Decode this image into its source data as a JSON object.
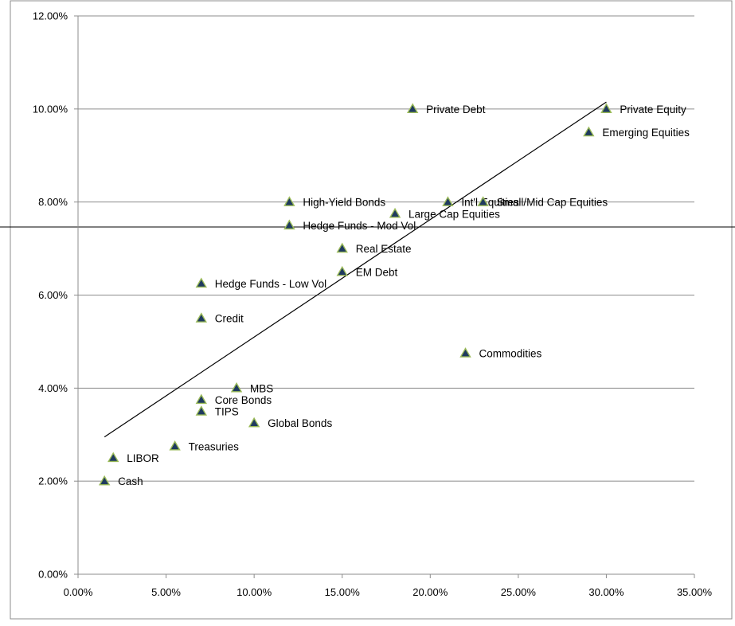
{
  "chart_data": {
    "type": "scatter",
    "title": "",
    "xlabel": "",
    "ylabel": "",
    "xlim": [
      0,
      35
    ],
    "ylim": [
      0,
      12
    ],
    "x_ticks": [
      0,
      5,
      10,
      15,
      20,
      25,
      30,
      35
    ],
    "y_ticks": [
      0,
      2,
      4,
      6,
      8,
      10,
      12
    ],
    "x_tick_labels": [
      "0.00%",
      "5.00%",
      "10.00%",
      "15.00%",
      "20.00%",
      "25.00%",
      "30.00%",
      "35.00%"
    ],
    "y_tick_labels": [
      "0.00%",
      "2.00%",
      "4.00%",
      "6.00%",
      "8.00%",
      "10.00%",
      "12.00%"
    ],
    "grid": "horizontal",
    "legend": "none",
    "marker": "triangle",
    "marker_color": "#1f3a5f",
    "marker_edge_color": "#9bbb59",
    "trendline": {
      "type": "linear",
      "x": [
        1.5,
        30
      ],
      "y": [
        2.95,
        10.15
      ]
    },
    "points": [
      {
        "label": "Cash",
        "x": 1.5,
        "y": 2.0
      },
      {
        "label": "LIBOR",
        "x": 2.0,
        "y": 2.5
      },
      {
        "label": "Treasuries",
        "x": 5.5,
        "y": 2.75
      },
      {
        "label": "TIPS",
        "x": 7.0,
        "y": 3.5
      },
      {
        "label": "Core Bonds",
        "x": 7.0,
        "y": 3.75
      },
      {
        "label": "MBS",
        "x": 9.0,
        "y": 4.0
      },
      {
        "label": "Global Bonds",
        "x": 10.0,
        "y": 3.25
      },
      {
        "label": "Credit",
        "x": 7.0,
        "y": 5.5
      },
      {
        "label": "Hedge Funds - Low Vol",
        "x": 7.0,
        "y": 6.25
      },
      {
        "label": "EM Debt",
        "x": 15.0,
        "y": 6.5
      },
      {
        "label": "Real Estate",
        "x": 15.0,
        "y": 7.0
      },
      {
        "label": "Hedge Funds - Mod Vol",
        "x": 12.0,
        "y": 7.5
      },
      {
        "label": "High-Yield Bonds",
        "x": 12.0,
        "y": 8.0
      },
      {
        "label": "Large Cap Equities",
        "x": 18.0,
        "y": 7.75
      },
      {
        "label": "Int'l Equities",
        "x": 21.0,
        "y": 8.0
      },
      {
        "label": "Small/Mid Cap Equities",
        "x": 23.0,
        "y": 8.0
      },
      {
        "label": "Commodities",
        "x": 22.0,
        "y": 4.75
      },
      {
        "label": "Private Debt",
        "x": 19.0,
        "y": 10.0
      },
      {
        "label": "Private Equity",
        "x": 30.0,
        "y": 10.0
      },
      {
        "label": "Emerging Equities",
        "x": 29.0,
        "y": 9.5
      }
    ]
  }
}
